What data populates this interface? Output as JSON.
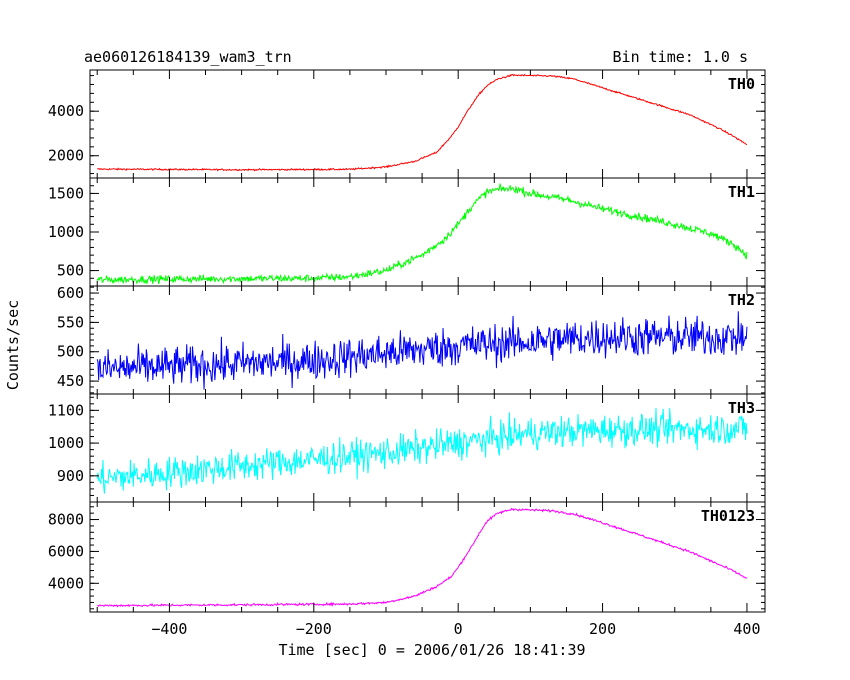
{
  "header": {
    "title": "ae060126184139_wam3_trn",
    "bin_time": "Bin time: 1.0 s"
  },
  "ylabel": "Counts/sec",
  "xlabel": "Time [sec] 0 = 2006/01/26 18:41:39",
  "chart_data": {
    "type": "line",
    "title": "ae060126184139_wam3_trn",
    "xlabel": "Time [sec] 0 = 2006/01/26 18:41:39",
    "ylabel": "Counts/sec",
    "xlim": [
      -510,
      425
    ],
    "x_ticks": [
      -400,
      -200,
      0,
      200,
      400
    ],
    "x_tick_labels": [
      "−400",
      "−200",
      "0",
      "200",
      "400"
    ],
    "bin_time_s": 1.0,
    "panels": [
      {
        "name": "TH0",
        "color": "#ff0000",
        "ylim": [
          1000,
          5850
        ],
        "yticks": [
          2000,
          4000
        ],
        "x": [
          -500,
          -300,
          -150,
          -100,
          -60,
          -30,
          -10,
          0,
          10,
          20,
          30,
          40,
          55,
          75,
          100,
          130,
          160,
          200,
          240,
          280,
          320,
          360,
          380,
          400
        ],
        "values": [
          1400,
          1370,
          1390,
          1500,
          1750,
          2150,
          2850,
          3300,
          3850,
          4350,
          4800,
          5150,
          5450,
          5620,
          5600,
          5580,
          5450,
          5050,
          4650,
          4250,
          3850,
          3250,
          2900,
          2500
        ],
        "noise": 25
      },
      {
        "name": "TH1",
        "color": "#00ff00",
        "ylim": [
          300,
          1700
        ],
        "yticks": [
          500,
          1000,
          1500
        ],
        "x": [
          -500,
          -400,
          -200,
          -150,
          -100,
          -50,
          -20,
          0,
          20,
          40,
          60,
          80,
          100,
          150,
          200,
          250,
          300,
          350,
          380,
          400
        ],
        "values": [
          380,
          390,
          400,
          420,
          500,
          700,
          900,
          1100,
          1350,
          1520,
          1560,
          1560,
          1500,
          1420,
          1300,
          1200,
          1100,
          980,
          850,
          700
        ],
        "noise": 35
      },
      {
        "name": "TH2",
        "color": "#0000ff",
        "ylim": [
          428,
          612
        ],
        "yticks": [
          450,
          500,
          550,
          600
        ],
        "x": [
          -500,
          -200,
          0,
          200,
          400
        ],
        "values": [
          470,
          485,
          510,
          525,
          525
        ],
        "noise": 24
      },
      {
        "name": "TH3",
        "color": "#00ffff",
        "ylim": [
          820,
          1150
        ],
        "yticks": [
          900,
          1000,
          1100
        ],
        "x": [
          -500,
          -300,
          -100,
          0,
          100,
          200,
          400
        ],
        "values": [
          890,
          930,
          970,
          1000,
          1030,
          1040,
          1045
        ],
        "noise": 35
      },
      {
        "name": "TH0123",
        "color": "#ff00ff",
        "ylim": [
          2200,
          9100
        ],
        "yticks": [
          4000,
          6000,
          8000
        ],
        "x": [
          -500,
          -300,
          -150,
          -100,
          -60,
          -30,
          -10,
          0,
          10,
          20,
          30,
          40,
          55,
          75,
          100,
          130,
          160,
          200,
          240,
          280,
          320,
          360,
          380,
          400
        ],
        "values": [
          2600,
          2650,
          2700,
          2800,
          3200,
          3800,
          4400,
          5000,
          5700,
          6400,
          7200,
          7900,
          8400,
          8650,
          8600,
          8550,
          8350,
          7800,
          7200,
          6600,
          6000,
          5200,
          4800,
          4300
        ],
        "noise": 50
      }
    ]
  }
}
